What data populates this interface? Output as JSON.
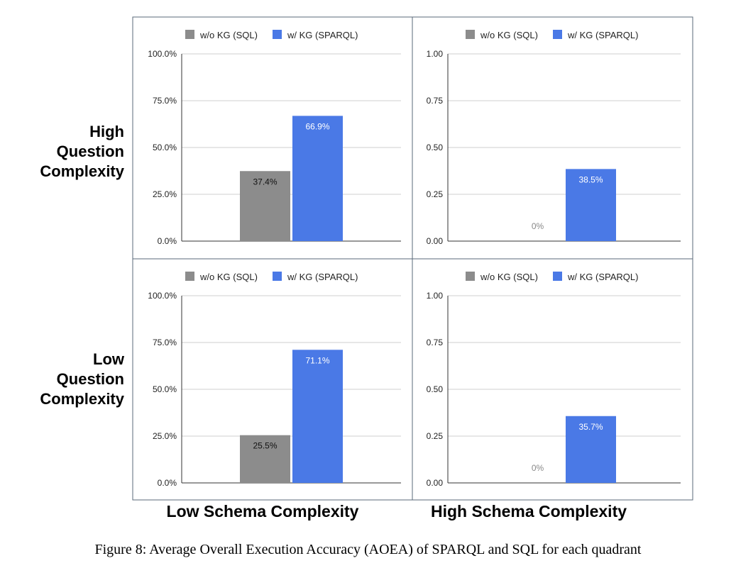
{
  "row_labels": {
    "high": [
      "High",
      "Question",
      "Complexity"
    ],
    "low": [
      "Low",
      "Question",
      "Complexity"
    ]
  },
  "column_labels": {
    "low": "Low Schema Complexity",
    "high": "High Schema Complexity"
  },
  "caption": {
    "label": "Figure 8:",
    "text": "Average Overall Execution Accuracy (AOEA) of SPARQL and SQL for each quadrant"
  },
  "colors": {
    "sql": "#8c8c8c",
    "sparql": "#4a79e6",
    "grid": "#cfcfcf",
    "border": "#5a6a7a"
  },
  "chart_data": [
    {
      "id": "high-q-low-s",
      "type": "bar",
      "legend": [
        "w/o KG (SQL)",
        "w/ KG (SPARQL)"
      ],
      "legend_position": "top",
      "ylim": [
        0,
        100
      ],
      "yticks": [
        "0.0%",
        "25.0%",
        "50.0%",
        "75.0%",
        "100.0%"
      ],
      "values": [
        37.4,
        66.9
      ],
      "labels": [
        "37.4%",
        "66.9%"
      ]
    },
    {
      "id": "high-q-high-s",
      "type": "bar",
      "legend": [
        "w/o KG (SQL)",
        "w/ KG (SPARQL)"
      ],
      "legend_position": "top",
      "ylim": [
        0,
        100
      ],
      "yticks": [
        "0.00",
        "0.25",
        "0.50",
        "0.75",
        "1.00"
      ],
      "values": [
        0,
        38.5
      ],
      "labels": [
        "0%",
        "38.5%"
      ]
    },
    {
      "id": "low-q-low-s",
      "type": "bar",
      "legend": [
        "w/o KG (SQL)",
        "w/ KG (SPARQL)"
      ],
      "legend_position": "top",
      "ylim": [
        0,
        100
      ],
      "yticks": [
        "0.0%",
        "25.0%",
        "50.0%",
        "75.0%",
        "100.0%"
      ],
      "values": [
        25.5,
        71.1
      ],
      "labels": [
        "25.5%",
        "71.1%"
      ]
    },
    {
      "id": "low-q-high-s",
      "type": "bar",
      "legend": [
        "w/o KG (SQL)",
        "w/ KG (SPARQL)"
      ],
      "legend_position": "top",
      "ylim": [
        0,
        100
      ],
      "yticks": [
        "0.00",
        "0.25",
        "0.50",
        "0.75",
        "1.00"
      ],
      "values": [
        0,
        35.7
      ],
      "labels": [
        "0%",
        "35.7%"
      ]
    }
  ]
}
